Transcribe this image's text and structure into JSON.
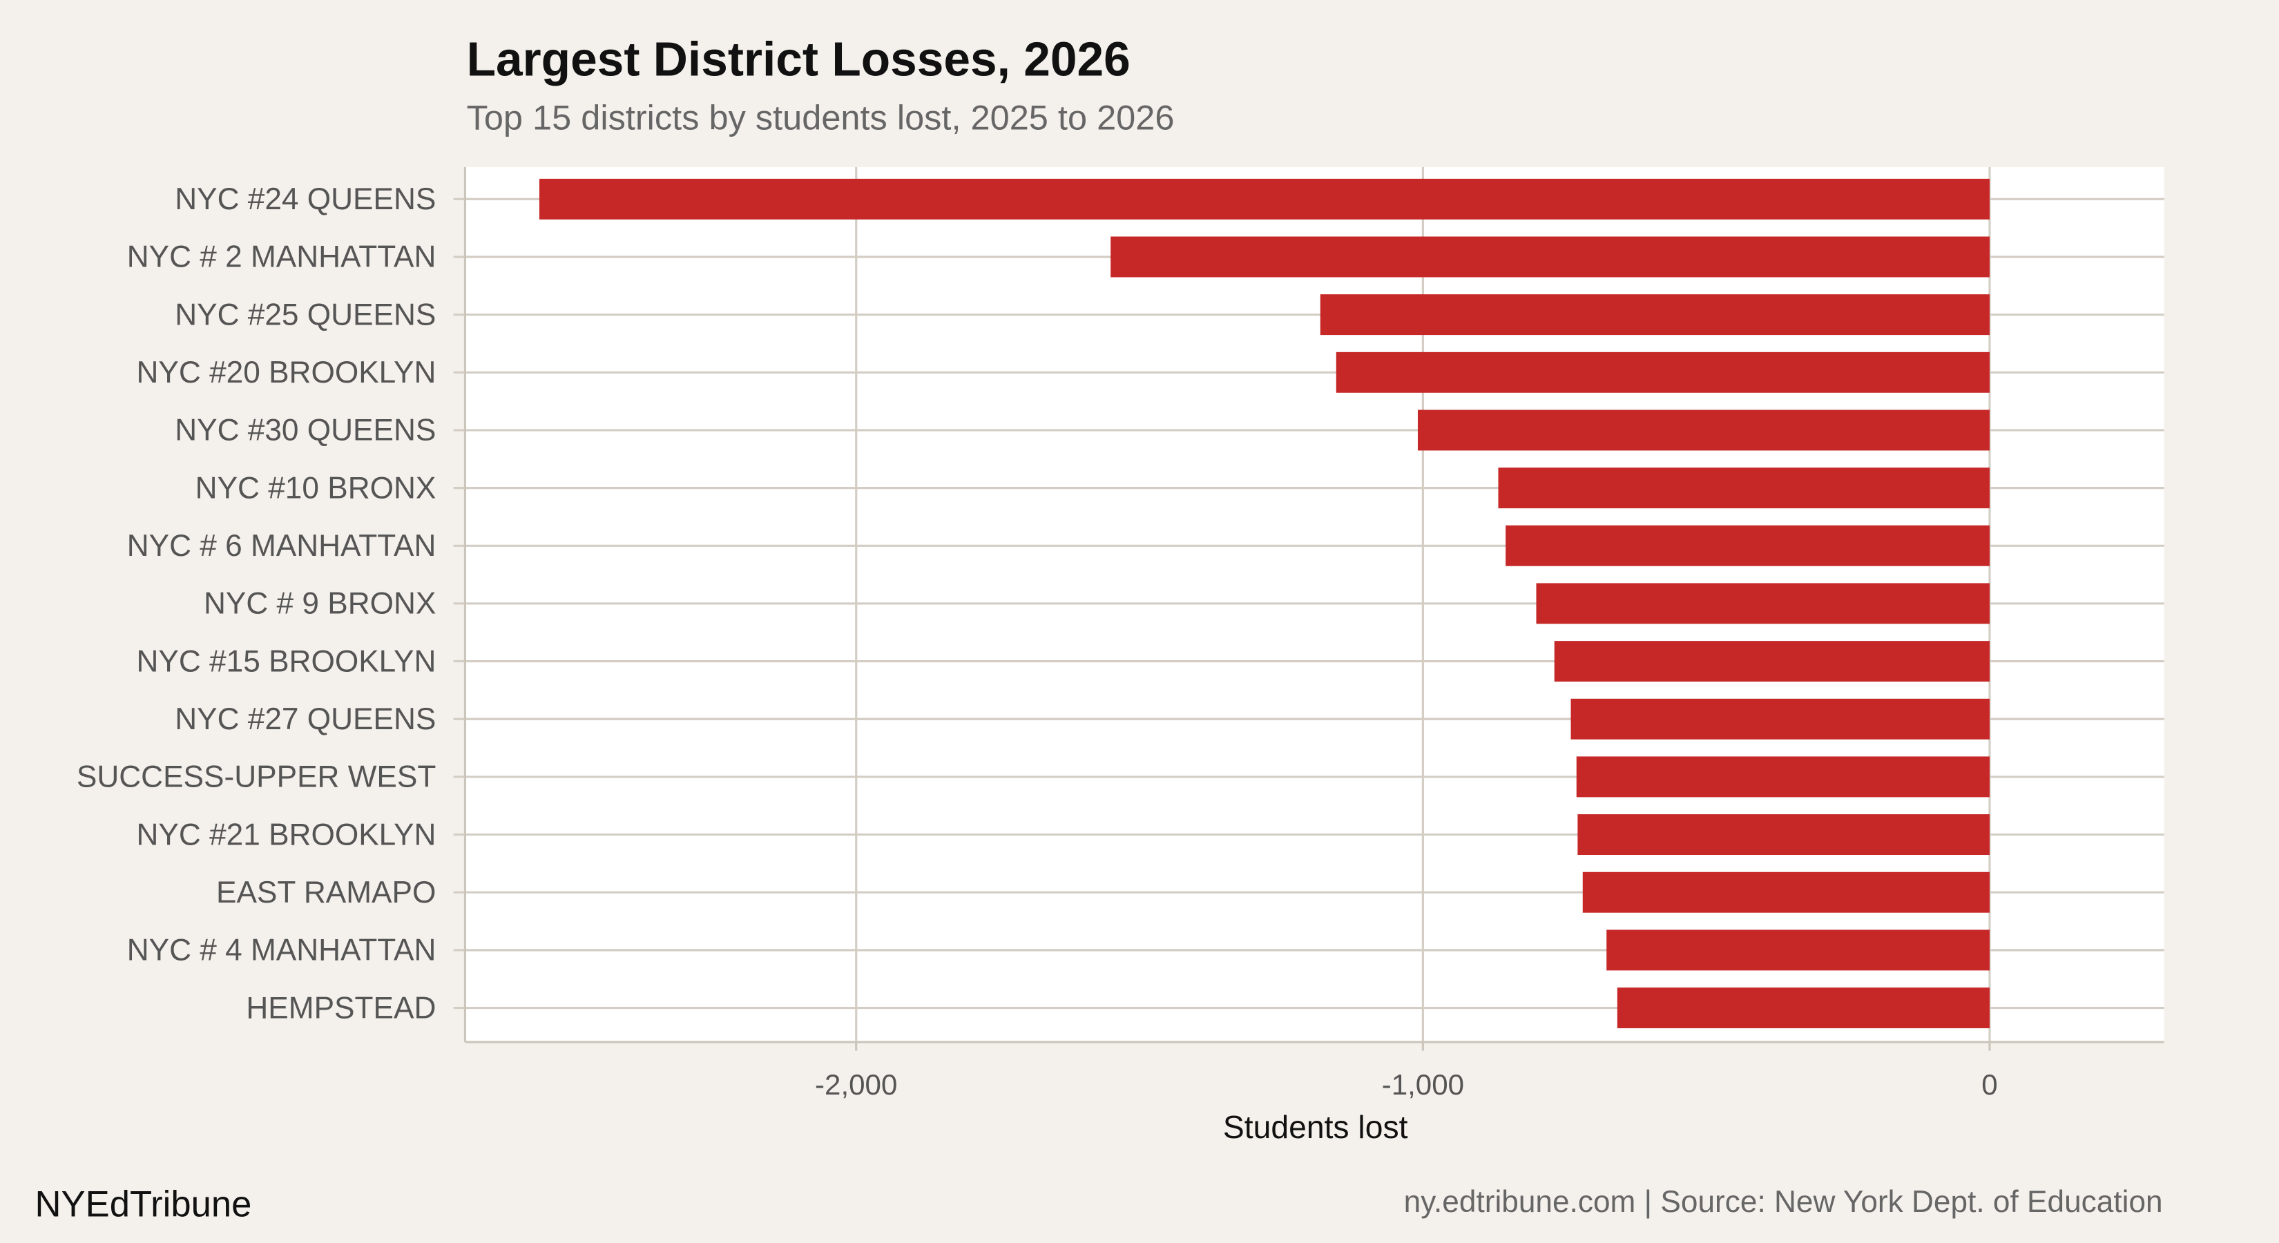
{
  "header": {
    "title": "Largest District Losses, 2026",
    "subtitle": "Top 15 districts by students lost, 2025 to 2026"
  },
  "footer": {
    "brand": "NYEdTribune",
    "source": "ny.edtribune.com | Source: New York Dept. of Education"
  },
  "chart_data": {
    "type": "bar",
    "orientation": "horizontal",
    "title": "Largest District Losses, 2026",
    "subtitle": "Top 15 districts by students lost, 2025 to 2026",
    "xlabel": "Students lost",
    "ylabel": "",
    "xlim": [
      -2690,
      308
    ],
    "xticks": [
      -2000,
      -1000,
      0
    ],
    "xtick_labels": [
      "-2,000",
      "-1,000",
      "0"
    ],
    "grid": true,
    "bar_color": "#c62828",
    "categories": [
      "NYC #24 QUEENS",
      "NYC # 2 MANHATTAN",
      "NYC #25 QUEENS",
      "NYC #20 BROOKLYN",
      "NYC #30 QUEENS",
      "NYC #10 BRONX",
      "NYC # 6 MANHATTAN",
      "NYC # 9 BRONX",
      "NYC #15 BROOKLYN",
      "NYC #27  QUEENS",
      "SUCCESS-UPPER WEST",
      "NYC #21 BROOKLYN",
      "EAST RAMAPO",
      "NYC # 4 MANHATTAN",
      "HEMPSTEAD"
    ],
    "values": [
      -2559,
      -1551,
      -1181,
      -1153,
      -1009,
      -867,
      -854,
      -800,
      -768,
      -739,
      -729,
      -727,
      -718,
      -676,
      -657
    ]
  }
}
